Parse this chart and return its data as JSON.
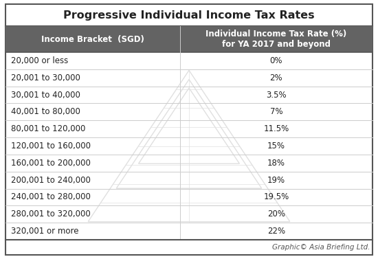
{
  "title": "Progressive Individual Income Tax Rates",
  "col1_header": "Income Bracket  (SGD)",
  "col2_header": "Individual Income Tax Rate (%)\nfor YA 2017 and beyond",
  "rows": [
    [
      "20,000 or less",
      "0%"
    ],
    [
      "20,001 to 30,000",
      "2%"
    ],
    [
      "30,001 to 40,000",
      "3.5%"
    ],
    [
      "40,001 to 80,000",
      "7%"
    ],
    [
      "80,001 to 120,000",
      "11.5%"
    ],
    [
      "120,001 to 160,000",
      "15%"
    ],
    [
      "160,001 to 200,000",
      "18%"
    ],
    [
      "200,001 to 240,000",
      "19%"
    ],
    [
      "240,001 to 280,000",
      "19.5%"
    ],
    [
      "280,001 to 320,000",
      "20%"
    ],
    [
      "320,001 or more",
      "22%"
    ]
  ],
  "header_bg": "#636363",
  "header_fg": "#ffffff",
  "border_color": "#cccccc",
  "outer_border_color": "#555555",
  "title_color": "#222222",
  "row_text_color": "#222222",
  "footer_text": "Graphic© Asia Briefing Ltd.",
  "title_fontsize": 11.5,
  "header_fontsize": 8.5,
  "row_fontsize": 8.5,
  "footer_fontsize": 7.5,
  "col_split": 0.475,
  "watermark_color": "#e0e0e0"
}
